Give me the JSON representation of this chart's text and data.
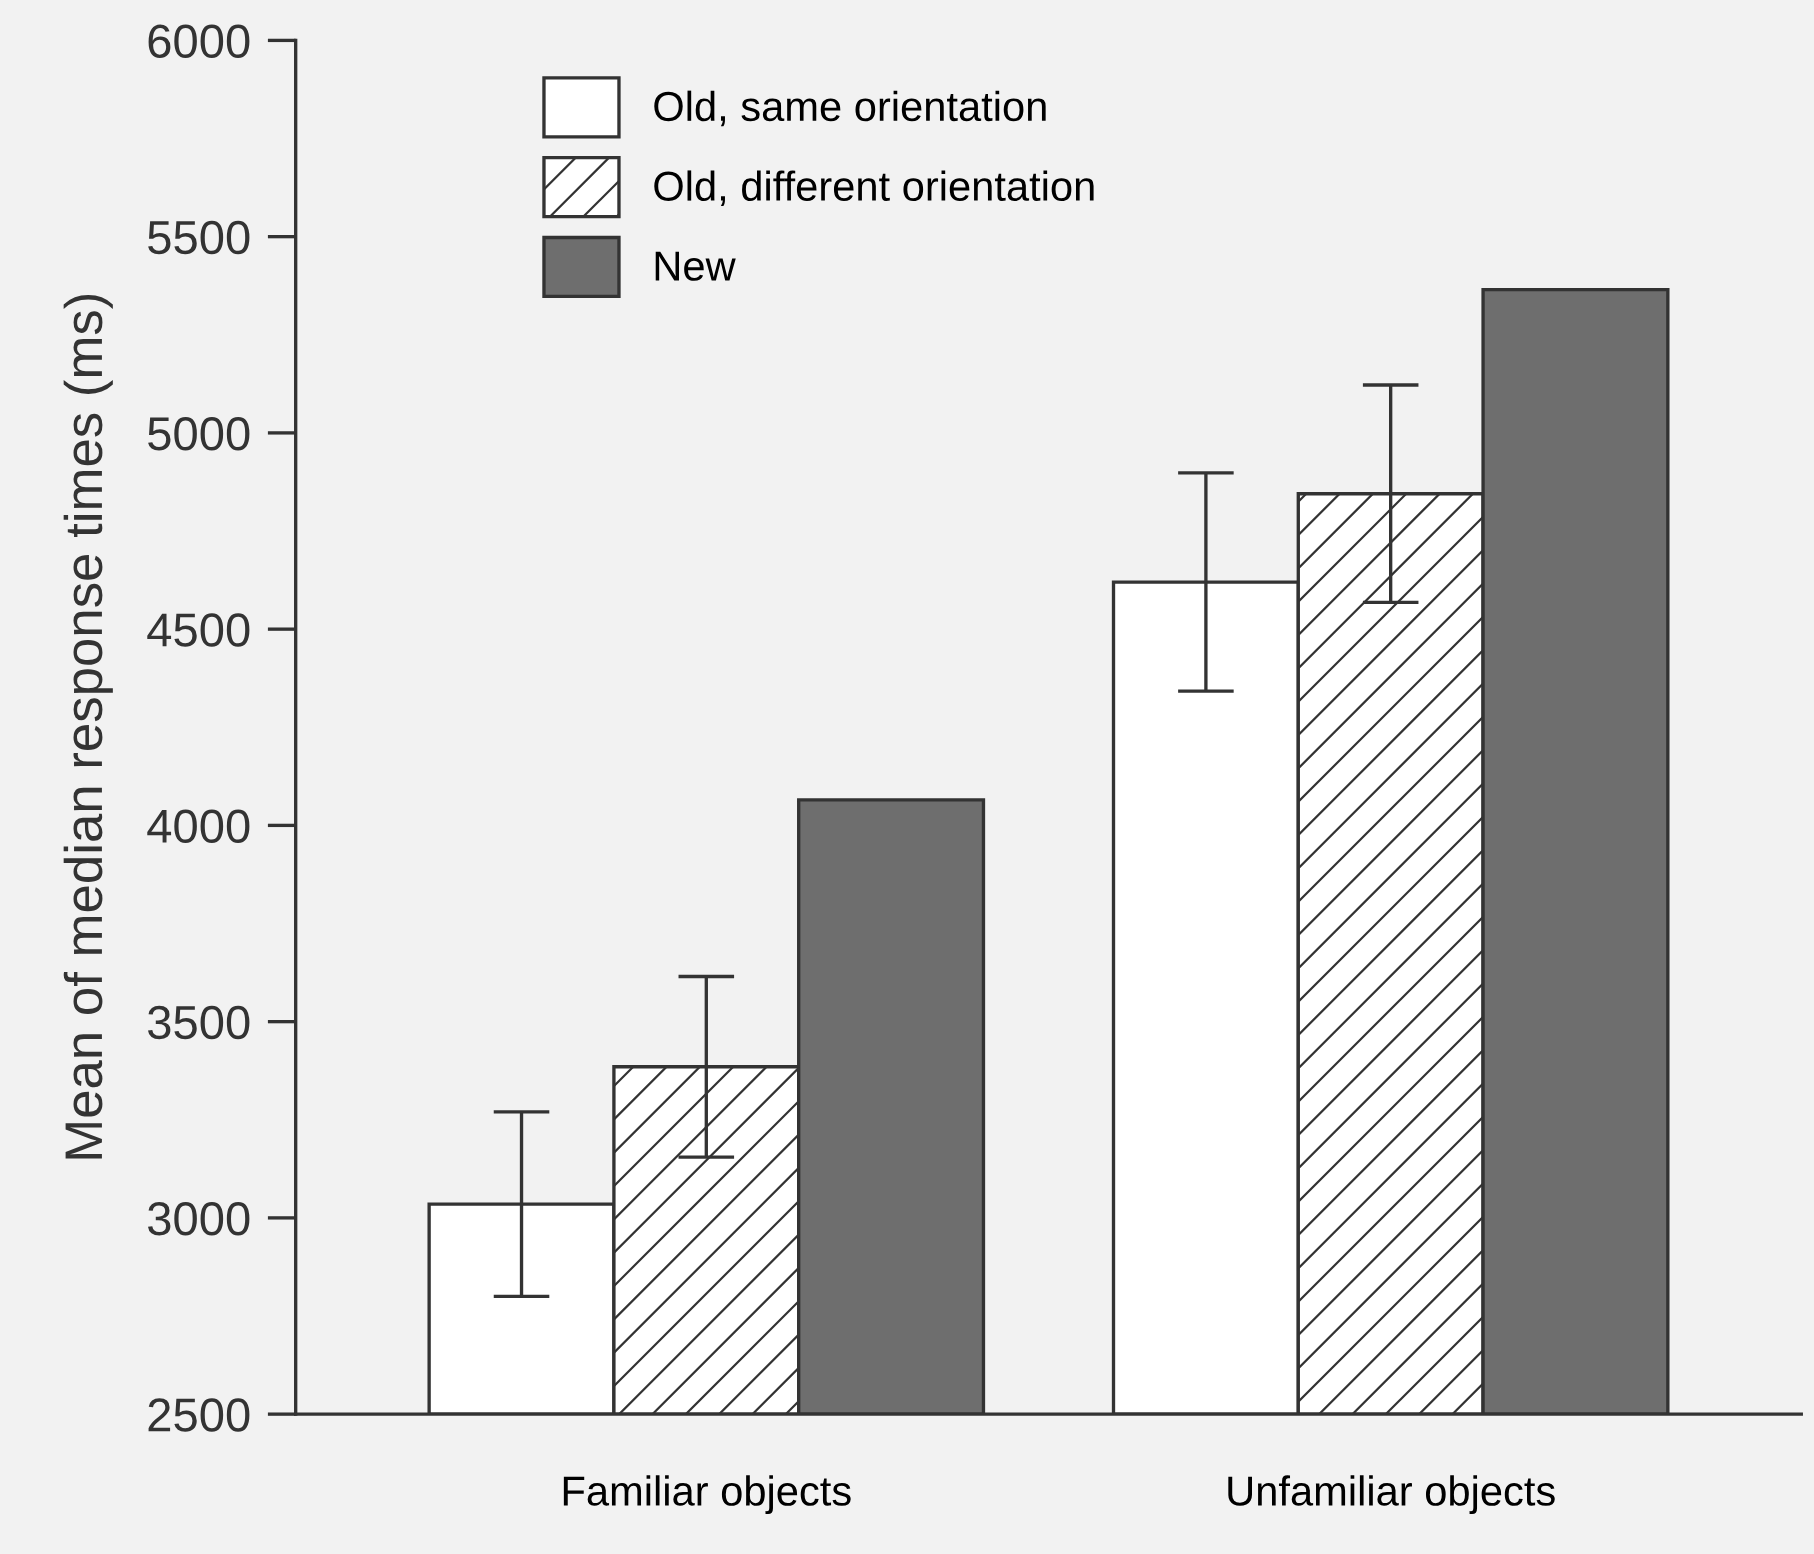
{
  "chart_data": {
    "type": "bar",
    "ylabel": "Mean of median response times (ms)",
    "categories": [
      "Familiar objects",
      "Unfamiliar objects"
    ],
    "series": [
      {
        "name": "Old, same orientation",
        "color": "#ffffff",
        "values": [
          3035,
          4620
        ],
        "errors": [
          235,
          278
        ]
      },
      {
        "name": "Old, different orientation",
        "color": "#333333",
        "values": [
          3385,
          4845
        ],
        "errors": [
          230,
          277
        ]
      },
      {
        "name": "New",
        "color": "#6e6e6e",
        "values": [
          4065,
          5365
        ]
      }
    ],
    "ylim": [
      2500,
      6000
    ],
    "yticks": [
      2500,
      3000,
      3500,
      4000,
      4500,
      5000,
      5500,
      6000
    ],
    "grid": false,
    "legend": "top left"
  }
}
